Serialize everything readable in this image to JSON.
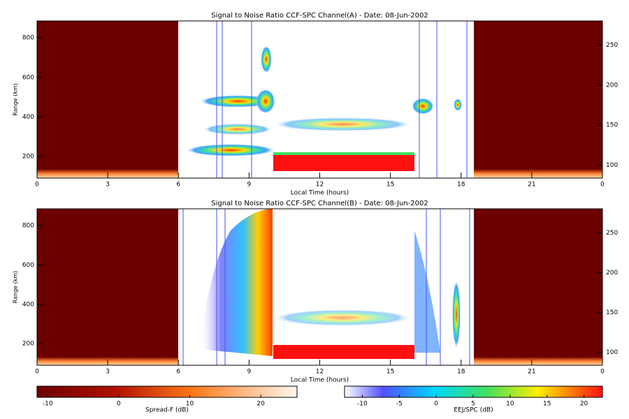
{
  "chart_data": [
    {
      "type": "rti",
      "title": "Signal to Noise Ratio CCF-SPC Channel(A) - Date: 08-Jun-2002",
      "xlabel": "Local Time (hours)",
      "ylabel": "Range (km)",
      "xlim": [
        0,
        24
      ],
      "xticks": [
        0,
        3,
        6,
        9,
        12,
        15,
        18,
        21,
        {
          "value": 24,
          "label": "0"
        }
      ],
      "ylim": [
        91,
        885
      ],
      "yticks": [
        200,
        400,
        600,
        800
      ],
      "y2lim": [
        84,
        280
      ],
      "y2ticks": [
        100,
        150,
        200,
        250
      ]
    },
    {
      "type": "rti",
      "title": "Signal to Noise Ratio CCF-SPC Channel(B) - Date: 08-Jun-2002",
      "xlabel": "Local Time (hours)",
      "ylabel": "Range (km)",
      "xlim": [
        0,
        24
      ],
      "xticks": [
        0,
        3,
        6,
        9,
        12,
        15,
        18,
        21,
        {
          "value": 24,
          "label": "0"
        }
      ],
      "ylim": [
        91,
        885
      ],
      "yticks": [
        200,
        400,
        600,
        800
      ],
      "y2lim": [
        84,
        280
      ],
      "y2ticks": [
        100,
        150,
        200,
        250
      ]
    }
  ],
  "colorbars": [
    {
      "label": "Spread-F (dB)",
      "lim": [
        -11.5,
        25.1
      ],
      "ticks": [
        -10,
        0,
        10,
        20
      ]
    },
    {
      "label": "EEJ/SPC (dB)",
      "lim": [
        -12.4,
        22.5
      ],
      "ticks": [
        -10,
        -5,
        0,
        5,
        10,
        15,
        20
      ]
    }
  ]
}
